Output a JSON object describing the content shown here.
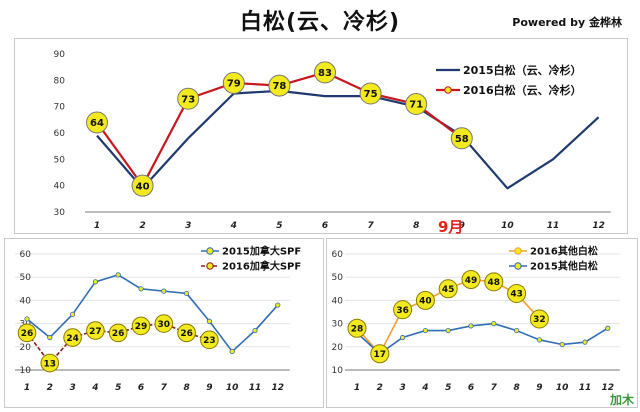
{
  "header": {
    "title": "白松(云、冷杉)",
    "powered_by": "Powered by 金桦林",
    "month_marker": "9月",
    "watermark": "加木"
  },
  "chart_data": [
    {
      "type": "line",
      "x": [
        1,
        2,
        3,
        4,
        5,
        6,
        7,
        8,
        9,
        10,
        11,
        12
      ],
      "xticks": [
        "1",
        "2",
        "3",
        "4",
        "5",
        "6",
        "7",
        "8",
        "9",
        "10",
        "11",
        "12"
      ],
      "ylim": [
        30,
        90
      ],
      "yticks": [
        30,
        40,
        50,
        60,
        70,
        80,
        90
      ],
      "legend": "top-right",
      "series": [
        {
          "name": "2015白松（云、冷杉）",
          "color": "#1f3a6e",
          "marker": "none",
          "values": [
            59,
            39,
            58,
            75,
            76,
            74,
            74,
            70,
            59,
            39,
            50,
            66
          ]
        },
        {
          "name": "2016白松（云、冷杉）",
          "color": "#c8161d",
          "marker": "circle",
          "marker_fill": "#f2ea1f",
          "labelled": true,
          "values": [
            64,
            40,
            73,
            79,
            78,
            83,
            75,
            71,
            58,
            null,
            null,
            null
          ]
        }
      ]
    },
    {
      "type": "line",
      "x": [
        1,
        2,
        3,
        4,
        5,
        6,
        7,
        8,
        9,
        10,
        11,
        12
      ],
      "xticks": [
        "1",
        "2",
        "3",
        "4",
        "5",
        "6",
        "7",
        "8",
        "9",
        "10",
        "11",
        "12"
      ],
      "ylim": [
        10,
        60
      ],
      "yticks": [
        10,
        20,
        30,
        40,
        50,
        60
      ],
      "legend": "top-right",
      "series": [
        {
          "name": "2015加拿大SPF",
          "color": "#2f6db5",
          "marker": "dot",
          "values": [
            32,
            24,
            34,
            48,
            51,
            45,
            44,
            43,
            31,
            18,
            27,
            38
          ]
        },
        {
          "name": "2016加拿大SPF",
          "color": "#8a1a1a",
          "dash": true,
          "marker": "circle",
          "marker_fill": "#f2ea1f",
          "labelled": true,
          "values": [
            26,
            13,
            24,
            27,
            26,
            29,
            30,
            26,
            23,
            null,
            null,
            null
          ]
        }
      ]
    },
    {
      "type": "line",
      "x": [
        1,
        2,
        3,
        4,
        5,
        6,
        7,
        8,
        9,
        10,
        11,
        12
      ],
      "xticks": [
        "1",
        "2",
        "3",
        "4",
        "5",
        "6",
        "7",
        "8",
        "9",
        "10",
        "11",
        "12"
      ],
      "ylim": [
        10,
        60
      ],
      "yticks": [
        10,
        20,
        30,
        40,
        50,
        60
      ],
      "legend": "top-right",
      "series": [
        {
          "name": "2016其他白松",
          "color": "#f0a030",
          "marker": "circle",
          "marker_fill": "#f2ea1f",
          "labelled": true,
          "values": [
            28,
            17,
            36,
            40,
            45,
            49,
            48,
            43,
            32,
            null,
            null,
            null
          ]
        },
        {
          "name": "2015其他白松",
          "color": "#2f6db5",
          "marker": "dot",
          "values": [
            26,
            17,
            24,
            27,
            27,
            29,
            30,
            27,
            23,
            21,
            22,
            28
          ]
        }
      ]
    }
  ]
}
